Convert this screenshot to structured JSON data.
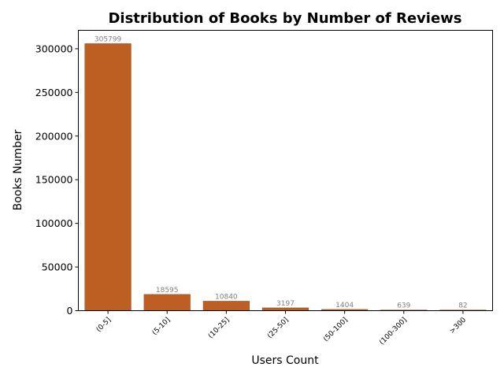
{
  "chart_data": {
    "type": "bar",
    "title": "Distribution of Books by Number of Reviews",
    "xlabel": "Users Count",
    "ylabel": "Books Number",
    "categories": [
      "(0-5]",
      "(5-10]",
      "(10-25]",
      "(25-50]",
      "(50-100]",
      "(100-300]",
      ">300"
    ],
    "values": [
      305799,
      18595,
      10840,
      3197,
      1404,
      639,
      82
    ],
    "data_labels": [
      "305799",
      "18595",
      "10840",
      "3197",
      "1404",
      "639",
      "82"
    ],
    "yticks": [
      0,
      50000,
      100000,
      150000,
      200000,
      250000,
      300000
    ],
    "ytick_labels": [
      "0",
      "50000",
      "100000",
      "150000",
      "200000",
      "250000",
      "300000"
    ],
    "ylim": [
      0,
      321089
    ],
    "grid": false,
    "legend": "none",
    "bar_color": "#bd5f22",
    "data_label_color": "#808080"
  }
}
